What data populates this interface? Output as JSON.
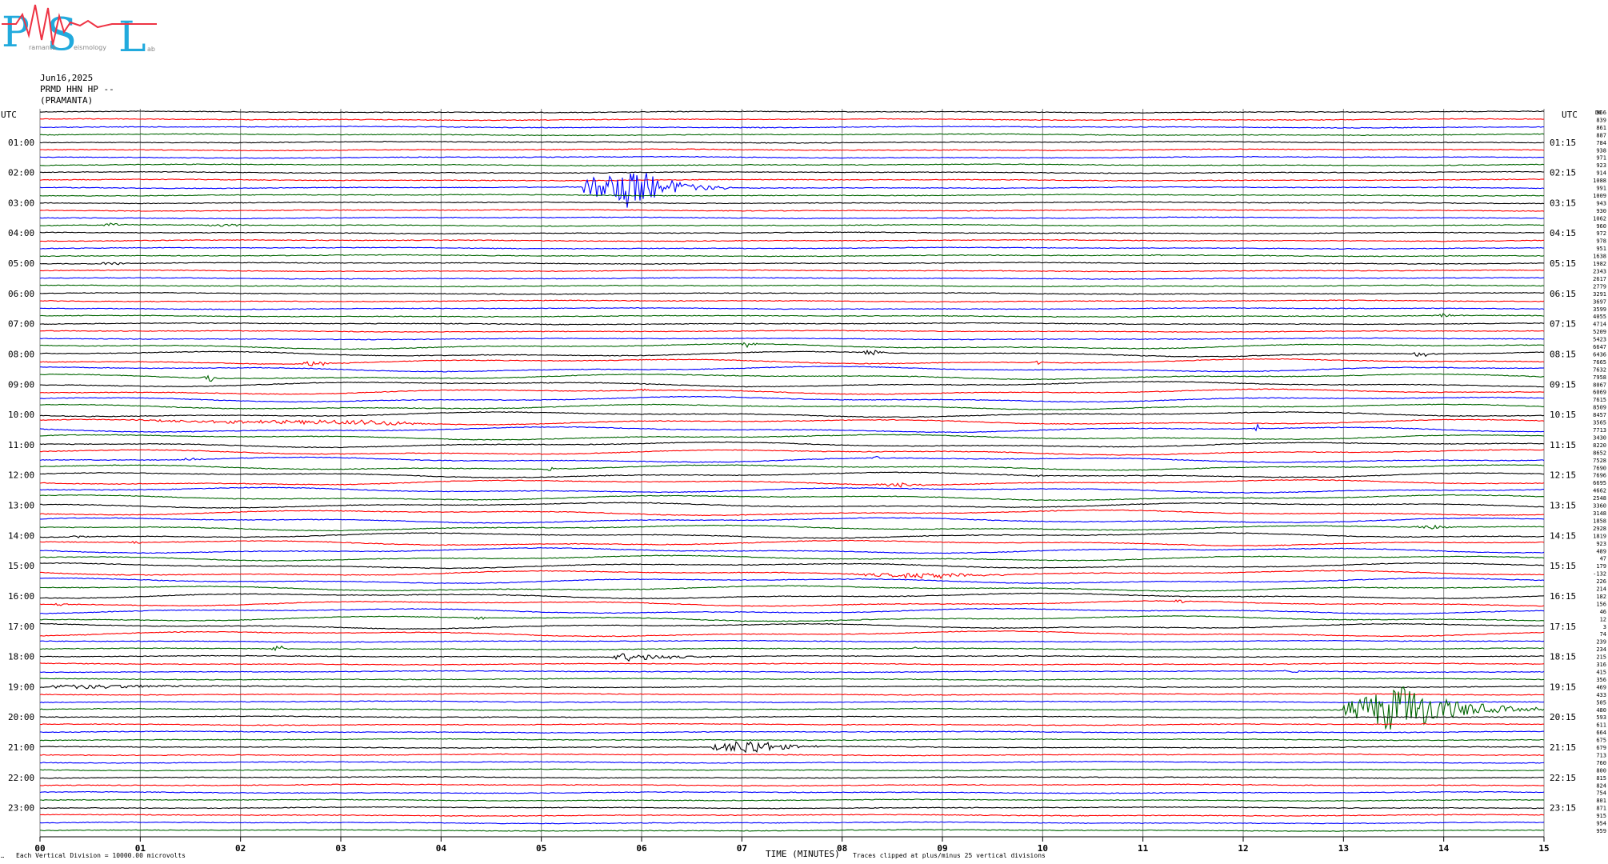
{
  "header": {
    "logo_letters": [
      "P",
      "S",
      "L"
    ],
    "logo_words": [
      "ramanta",
      "eismology",
      "ab"
    ],
    "date": "Jun16,2025",
    "station": "PRMD HHN HP --",
    "location": "(PRAMANTA)"
  },
  "axes": {
    "left_label": "UTC",
    "right_label": "UTC",
    "right_header": "DC",
    "left_times": [
      "01:00",
      "02:00",
      "03:00",
      "04:00",
      "05:00",
      "06:00",
      "07:00",
      "08:00",
      "09:00",
      "10:00",
      "11:00",
      "12:00",
      "13:00",
      "14:00",
      "15:00",
      "16:00",
      "17:00",
      "18:00",
      "19:00",
      "20:00",
      "21:00",
      "22:00",
      "23:00"
    ],
    "right_times": [
      "01:15",
      "02:15",
      "03:15",
      "04:15",
      "05:15",
      "06:15",
      "07:15",
      "08:15",
      "09:15",
      "10:15",
      "11:15",
      "12:15",
      "13:15",
      "14:15",
      "15:15",
      "16:15",
      "17:15",
      "18:15",
      "19:15",
      "20:15",
      "21:15",
      "22:15",
      "23:15"
    ],
    "x_ticks": [
      "00",
      "01",
      "02",
      "03",
      "04",
      "05",
      "06",
      "07",
      "08",
      "09",
      "10",
      "11",
      "12",
      "13",
      "14",
      "15"
    ],
    "xlabel": "TIME (MINUTES)"
  },
  "footer": {
    "left_mark": "…",
    "vertical_division": "Each Vertical Division = 10000.00 microvolts",
    "clip_note": "Traces clipped at plus/minus 25 vertical divisions"
  },
  "colors": {
    "black": "#000000",
    "red": "#ff0000",
    "blue": "#0000ff",
    "green": "#006400",
    "grid": "#808080",
    "logo_blue": "#22aadd",
    "logo_red": "#ee3344"
  },
  "chart_data": {
    "type": "heatmap",
    "title": "",
    "xlabel": "TIME (MINUTES)",
    "ylabel": "UTC",
    "xlim": [
      0,
      15
    ],
    "trace_count": 96,
    "trace_colors": [
      "black",
      "red",
      "blue",
      "green"
    ],
    "dc_offsets": [
      966,
      839,
      861,
      887,
      784,
      938,
      971,
      923,
      914,
      1088,
      991,
      1009,
      943,
      930,
      1062,
      960,
      972,
      978,
      951,
      1638,
      1982,
      2343,
      2617,
      2779,
      3291,
      3697,
      3599,
      4055,
      4714,
      5209,
      5423,
      6647,
      6436,
      7665,
      7632,
      7958,
      8067,
      6069,
      7615,
      8509,
      8457,
      3565,
      7713,
      3430,
      8220,
      8652,
      7528,
      7690,
      7696,
      6695,
      4662,
      2548,
      3360,
      3148,
      1858,
      2928,
      1819,
      923,
      489,
      47,
      179,
      -132,
      226,
      214,
      182,
      156,
      46,
      12,
      3,
      74,
      239,
      234,
      215,
      316,
      415,
      356,
      469,
      433,
      505,
      480,
      593,
      611,
      664,
      675,
      679,
      713,
      760,
      800,
      815,
      824,
      754,
      801,
      871,
      915,
      954,
      959
    ],
    "events": [
      {
        "trace": 10,
        "start": 5.4,
        "end": 6.9,
        "peak": 5.9,
        "amp": 28
      },
      {
        "trace": 15,
        "start": 0.6,
        "end": 1.0,
        "peak": 0.7,
        "amp": 3
      },
      {
        "trace": 15,
        "start": 1.6,
        "end": 2.3,
        "peak": 1.9,
        "amp": 2
      },
      {
        "trace": 19,
        "start": 11.05,
        "end": 11.25,
        "peak": 11.1,
        "amp": 2
      },
      {
        "trace": 20,
        "start": 0.6,
        "end": 1.0,
        "peak": 0.7,
        "amp": 3
      },
      {
        "trace": 27,
        "start": 13.9,
        "end": 14.3,
        "peak": 14.0,
        "amp": 3
      },
      {
        "trace": 31,
        "start": 7.0,
        "end": 7.2,
        "peak": 7.05,
        "amp": 5
      },
      {
        "trace": 32,
        "start": 8.2,
        "end": 8.5,
        "peak": 8.3,
        "amp": 6
      },
      {
        "trace": 32,
        "start": 13.7,
        "end": 13.95,
        "peak": 13.8,
        "amp": 6
      },
      {
        "trace": 33,
        "start": 2.6,
        "end": 2.95,
        "peak": 2.8,
        "amp": 5
      },
      {
        "trace": 33,
        "start": 9.9,
        "end": 10.05,
        "peak": 9.95,
        "amp": 4
      },
      {
        "trace": 35,
        "start": 1.6,
        "end": 1.8,
        "peak": 1.7,
        "amp": 5
      },
      {
        "trace": 37,
        "start": 5.9,
        "end": 6.3,
        "peak": 6.0,
        "amp": 2
      },
      {
        "trace": 41,
        "start": 0.9,
        "end": 4.3,
        "peak": 3.5,
        "amp": 3
      },
      {
        "trace": 42,
        "start": 12.1,
        "end": 12.2,
        "peak": 12.15,
        "amp": 6
      },
      {
        "trace": 46,
        "start": 1.4,
        "end": 1.7,
        "peak": 1.5,
        "amp": 2
      },
      {
        "trace": 47,
        "start": 5.0,
        "end": 5.2,
        "peak": 5.1,
        "amp": 3
      },
      {
        "trace": 46,
        "start": 8.3,
        "end": 8.4,
        "peak": 8.35,
        "amp": 3
      },
      {
        "trace": 48,
        "start": 9.9,
        "end": 10.1,
        "peak": 9.95,
        "amp": 3
      },
      {
        "trace": 49,
        "start": 8.3,
        "end": 9.0,
        "peak": 8.6,
        "amp": 3
      },
      {
        "trace": 55,
        "start": 13.7,
        "end": 14.2,
        "peak": 13.9,
        "amp": 3
      },
      {
        "trace": 56,
        "start": 0.3,
        "end": 0.6,
        "peak": 0.4,
        "amp": 3
      },
      {
        "trace": 57,
        "start": 0.9,
        "end": 1.1,
        "peak": 1.0,
        "amp": 2
      },
      {
        "trace": 61,
        "start": 8.1,
        "end": 10.1,
        "peak": 9.0,
        "amp": 4
      },
      {
        "trace": 65,
        "start": 0.1,
        "end": 0.4,
        "peak": 0.2,
        "amp": 2
      },
      {
        "trace": 65,
        "start": 11.3,
        "end": 11.5,
        "peak": 11.4,
        "amp": 3
      },
      {
        "trace": 67,
        "start": 4.3,
        "end": 4.5,
        "peak": 4.4,
        "amp": 3
      },
      {
        "trace": 71,
        "start": 2.3,
        "end": 2.5,
        "peak": 2.4,
        "amp": 5
      },
      {
        "trace": 71,
        "start": 8.7,
        "end": 8.8,
        "peak": 8.75,
        "amp": 4
      },
      {
        "trace": 72,
        "start": 5.7,
        "end": 6.95,
        "peak": 5.85,
        "amp": 6
      },
      {
        "trace": 74,
        "start": 12.4,
        "end": 12.6,
        "peak": 12.5,
        "amp": 4
      },
      {
        "trace": 76,
        "start": 0.0,
        "end": 3.3,
        "peak": 0.3,
        "amp": 3
      },
      {
        "trace": 79,
        "start": 13.0,
        "end": 15.0,
        "peak": 13.6,
        "amp": 32
      },
      {
        "trace": 84,
        "start": 6.7,
        "end": 7.9,
        "peak": 7.1,
        "amp": 10
      }
    ]
  }
}
